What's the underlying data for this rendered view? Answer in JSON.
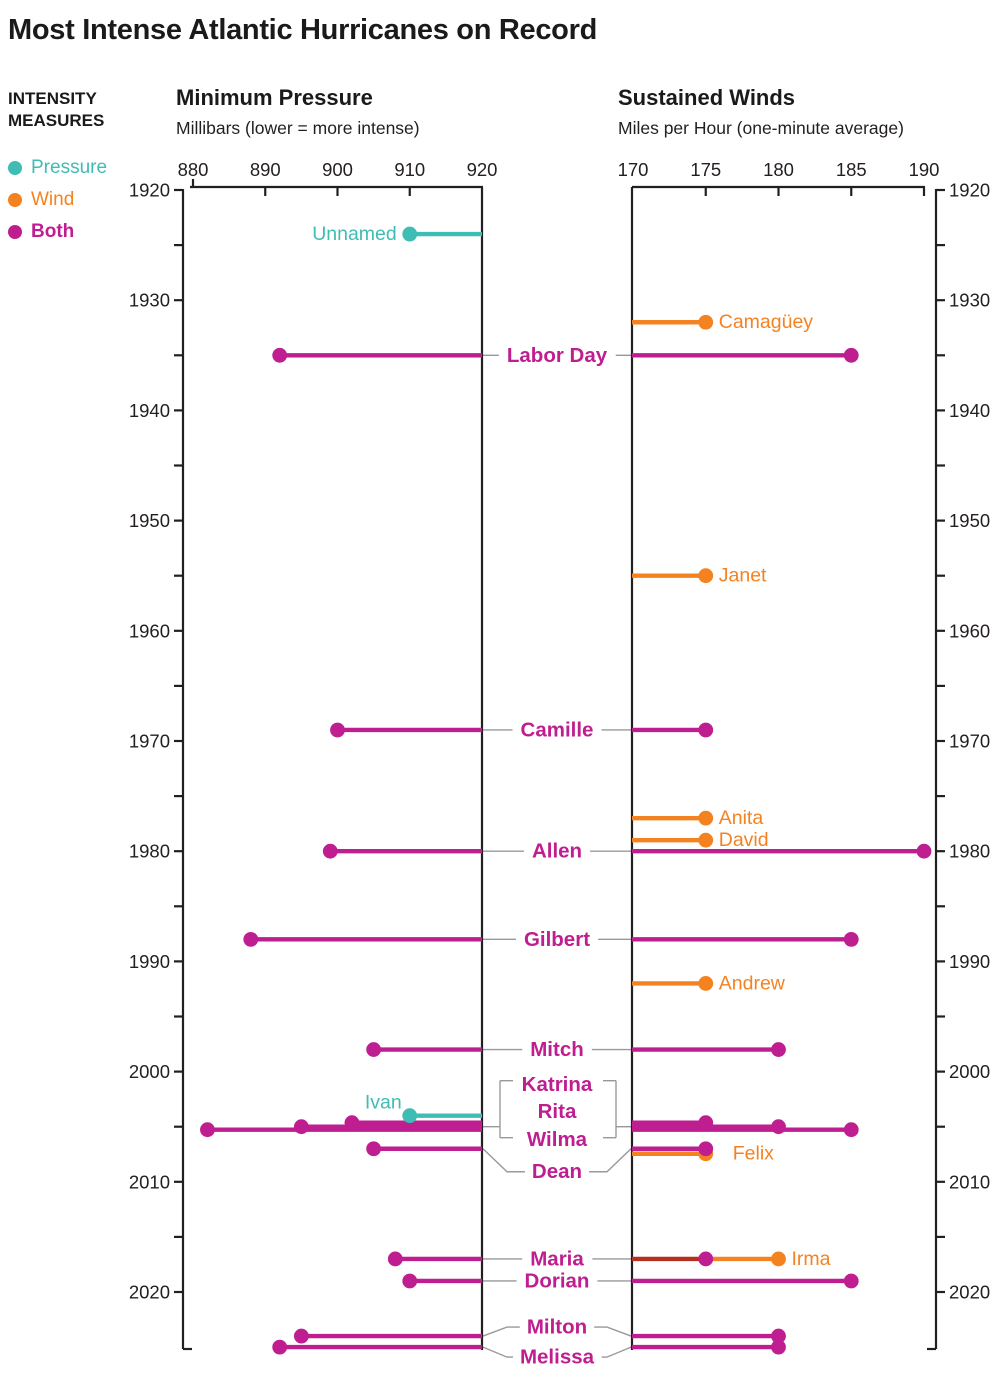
{
  "title": "Most Intense Atlantic Hurricanes on Record",
  "legend": {
    "heading_line1": "INTENSITY",
    "heading_line2": "MEASURES",
    "items": [
      {
        "id": "pressure",
        "label": "Pressure",
        "color": "#3fbcb4",
        "bold": false
      },
      {
        "id": "wind",
        "label": "Wind",
        "color": "#f58220",
        "bold": false
      },
      {
        "id": "both",
        "label": "Both",
        "color": "#be1e8f",
        "bold": true
      }
    ]
  },
  "colors": {
    "pressure": "#3fbcb4",
    "wind": "#f58220",
    "both": "#be1e8f",
    "overlap": "#b5301d",
    "axis": "#231f20",
    "connector": "#999999"
  },
  "chart_data": {
    "type": "lollipop-timeline",
    "pressure_axis": {
      "title": "Minimum Pressure",
      "subtitle": "Millibars (lower = more intense)",
      "ticks": [
        880,
        890,
        900,
        910,
        920
      ],
      "domain": [
        880,
        920
      ]
    },
    "wind_axis": {
      "title": "Sustained Winds",
      "subtitle": "Miles per Hour (one-minute average)",
      "ticks": [
        170,
        175,
        180,
        185,
        190
      ],
      "domain": [
        170,
        190
      ]
    },
    "year_axis": {
      "start": 1920,
      "end": 2025,
      "labeled_ticks": [
        1920,
        1930,
        1940,
        1950,
        1960,
        1970,
        1980,
        1990,
        2000,
        2010,
        2020
      ],
      "minor_step": 5
    },
    "hurricanes": [
      {
        "name": "Unnamed",
        "year": 1924,
        "pressure_mb": 910,
        "wind_mph": null,
        "measures": "pressure",
        "label_style": "dot-left"
      },
      {
        "name": "Camagüey",
        "year": 1932,
        "pressure_mb": null,
        "wind_mph": 175,
        "measures": "wind",
        "label_style": "dot-right"
      },
      {
        "name": "Labor Day",
        "year": 1935,
        "pressure_mb": 892,
        "wind_mph": 185,
        "measures": "both",
        "label_style": "gap"
      },
      {
        "name": "Janet",
        "year": 1955,
        "pressure_mb": null,
        "wind_mph": 175,
        "measures": "wind",
        "label_style": "dot-right"
      },
      {
        "name": "Camille",
        "year": 1969,
        "pressure_mb": 900,
        "wind_mph": 175,
        "measures": "both",
        "label_style": "gap"
      },
      {
        "name": "Anita",
        "year": 1977,
        "pressure_mb": null,
        "wind_mph": 175,
        "measures": "wind",
        "label_style": "dot-right"
      },
      {
        "name": "David",
        "year": 1979,
        "pressure_mb": null,
        "wind_mph": 175,
        "measures": "wind",
        "label_style": "dot-right"
      },
      {
        "name": "Allen",
        "year": 1980,
        "pressure_mb": 899,
        "wind_mph": 190,
        "measures": "both",
        "label_style": "gap"
      },
      {
        "name": "Gilbert",
        "year": 1988,
        "pressure_mb": 888,
        "wind_mph": 185,
        "measures": "both",
        "label_style": "gap"
      },
      {
        "name": "Andrew",
        "year": 1992,
        "pressure_mb": null,
        "wind_mph": 175,
        "measures": "wind",
        "label_style": "dot-right"
      },
      {
        "name": "Mitch",
        "year": 1998,
        "pressure_mb": 905,
        "wind_mph": 180,
        "measures": "both",
        "label_style": "gap"
      },
      {
        "name": "Ivan",
        "year": 2004,
        "pressure_mb": 910,
        "wind_mph": null,
        "measures": "pressure",
        "label_style": "dot-left-above"
      },
      {
        "name": "Katrina",
        "year": 2005,
        "pressure_mb": 902,
        "wind_mph": 175,
        "measures": "both",
        "label_style": "bracket",
        "row_dy": -4,
        "label_dy": -38
      },
      {
        "name": "Rita",
        "year": 2005,
        "pressure_mb": 895,
        "wind_mph": 180,
        "measures": "both",
        "label_style": "bracket",
        "row_dy": 0,
        "label_dy": -15
      },
      {
        "name": "Wilma",
        "year": 2005,
        "pressure_mb": 882,
        "wind_mph": 185,
        "measures": "both",
        "label_style": "bracket",
        "row_dy": 3,
        "label_dy": 10
      },
      {
        "name": "Felix",
        "year": 2007,
        "pressure_mb": null,
        "wind_mph": 175,
        "measures": "wind",
        "label_style": "dot-right",
        "row_dy": 5,
        "label_dx": 14
      },
      {
        "name": "Dean",
        "year": 2007,
        "pressure_mb": 905,
        "wind_mph": 175,
        "measures": "both",
        "label_style": "gap-angled",
        "label_dy": 23
      },
      {
        "name": "Maria",
        "year": 2017,
        "pressure_mb": 908,
        "wind_mph": 175,
        "measures": "both",
        "label_style": "gap",
        "wind_line_color": "overlap"
      },
      {
        "name": "Irma",
        "year": 2017,
        "pressure_mb": null,
        "wind_mph": 180,
        "measures": "wind",
        "label_style": "dot-right",
        "line_from_mph": 175
      },
      {
        "name": "Dorian",
        "year": 2019,
        "pressure_mb": 910,
        "wind_mph": 185,
        "measures": "both",
        "label_style": "gap"
      },
      {
        "name": "Milton",
        "year": 2024,
        "pressure_mb": 895,
        "wind_mph": 180,
        "measures": "both",
        "label_style": "gap-angled",
        "label_dy": -9
      },
      {
        "name": "Melissa",
        "year": 2025,
        "pressure_mb": 892,
        "wind_mph": 180,
        "measures": "both",
        "label_style": "gap-angled",
        "label_dy": 10
      }
    ]
  }
}
